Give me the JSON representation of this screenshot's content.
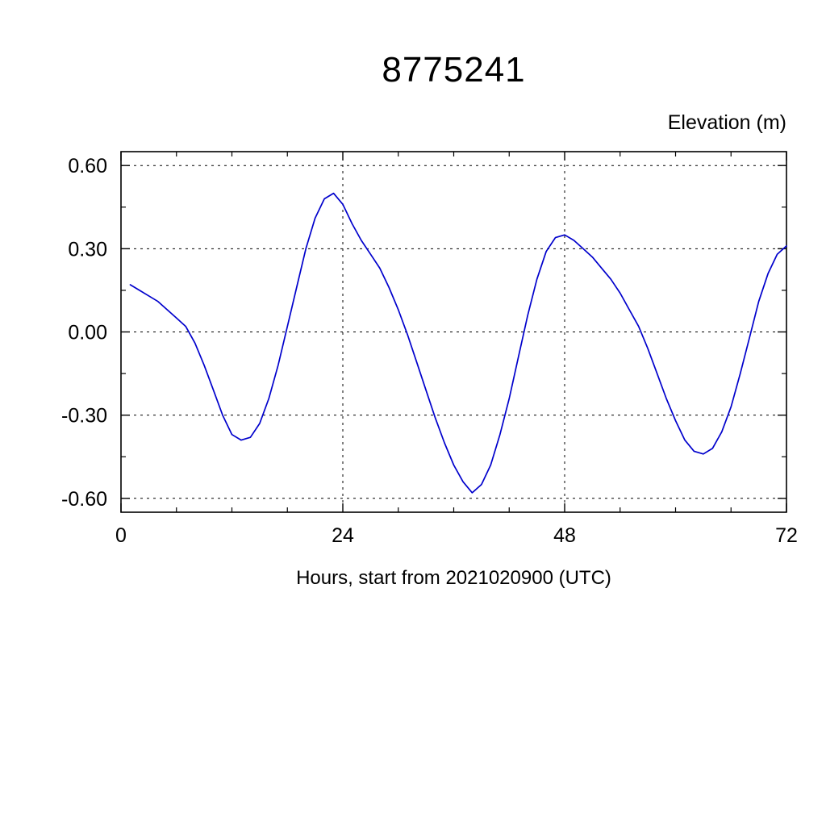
{
  "page": {
    "background": "#ffffff"
  },
  "chart_data": {
    "type": "line",
    "title": "8775241",
    "ylabel": "Elevation (m)",
    "xlabel": "Hours, start from 2021020900 (UTC)",
    "xlim": [
      0,
      72
    ],
    "ylim": [
      -0.65,
      0.65
    ],
    "x_ticks": [
      0,
      24,
      48,
      72
    ],
    "x_tick_labels": [
      "0",
      "24",
      "48",
      "72"
    ],
    "x_minor_step": 6,
    "y_ticks": [
      -0.6,
      -0.3,
      0.0,
      0.3,
      0.6
    ],
    "y_tick_labels": [
      "-0.60",
      "-0.30",
      "0.00",
      "0.30",
      "0.60"
    ],
    "y_minor_step": 0.15,
    "grid": "dashed",
    "legend": "none",
    "line_color": "#0000cc",
    "axis_color": "#000000",
    "series": [
      {
        "name": "elevation",
        "x": [
          1,
          2,
          3,
          4,
          5,
          6,
          7,
          8,
          9,
          10,
          11,
          12,
          13,
          14,
          15,
          16,
          17,
          18,
          19,
          20,
          21,
          22,
          23,
          24,
          25,
          26,
          27,
          28,
          29,
          30,
          31,
          32,
          33,
          34,
          35,
          36,
          37,
          38,
          39,
          40,
          41,
          42,
          43,
          44,
          45,
          46,
          47,
          48,
          49,
          50,
          51,
          52,
          53,
          54,
          55,
          56,
          57,
          58,
          59,
          60,
          61,
          62,
          63,
          64,
          65,
          66,
          67,
          68,
          69,
          70,
          71,
          72
        ],
        "y": [
          0.17,
          0.15,
          0.13,
          0.11,
          0.08,
          0.05,
          0.02,
          -0.04,
          -0.12,
          -0.21,
          -0.3,
          -0.37,
          -0.39,
          -0.38,
          -0.33,
          -0.24,
          -0.12,
          0.02,
          0.16,
          0.3,
          0.41,
          0.48,
          0.5,
          0.46,
          0.39,
          0.33,
          0.28,
          0.23,
          0.16,
          0.08,
          -0.01,
          -0.11,
          -0.21,
          -0.31,
          -0.4,
          -0.48,
          -0.54,
          -0.58,
          -0.55,
          -0.48,
          -0.37,
          -0.24,
          -0.09,
          0.06,
          0.19,
          0.29,
          0.34,
          0.35,
          0.33,
          0.3,
          0.27,
          0.23,
          0.19,
          0.14,
          0.08,
          0.02,
          -0.06,
          -0.15,
          -0.24,
          -0.32,
          -0.39,
          -0.43,
          -0.44,
          -0.42,
          -0.36,
          -0.27,
          -0.15,
          -0.02,
          0.11,
          0.21,
          0.28,
          0.31
        ]
      }
    ]
  }
}
